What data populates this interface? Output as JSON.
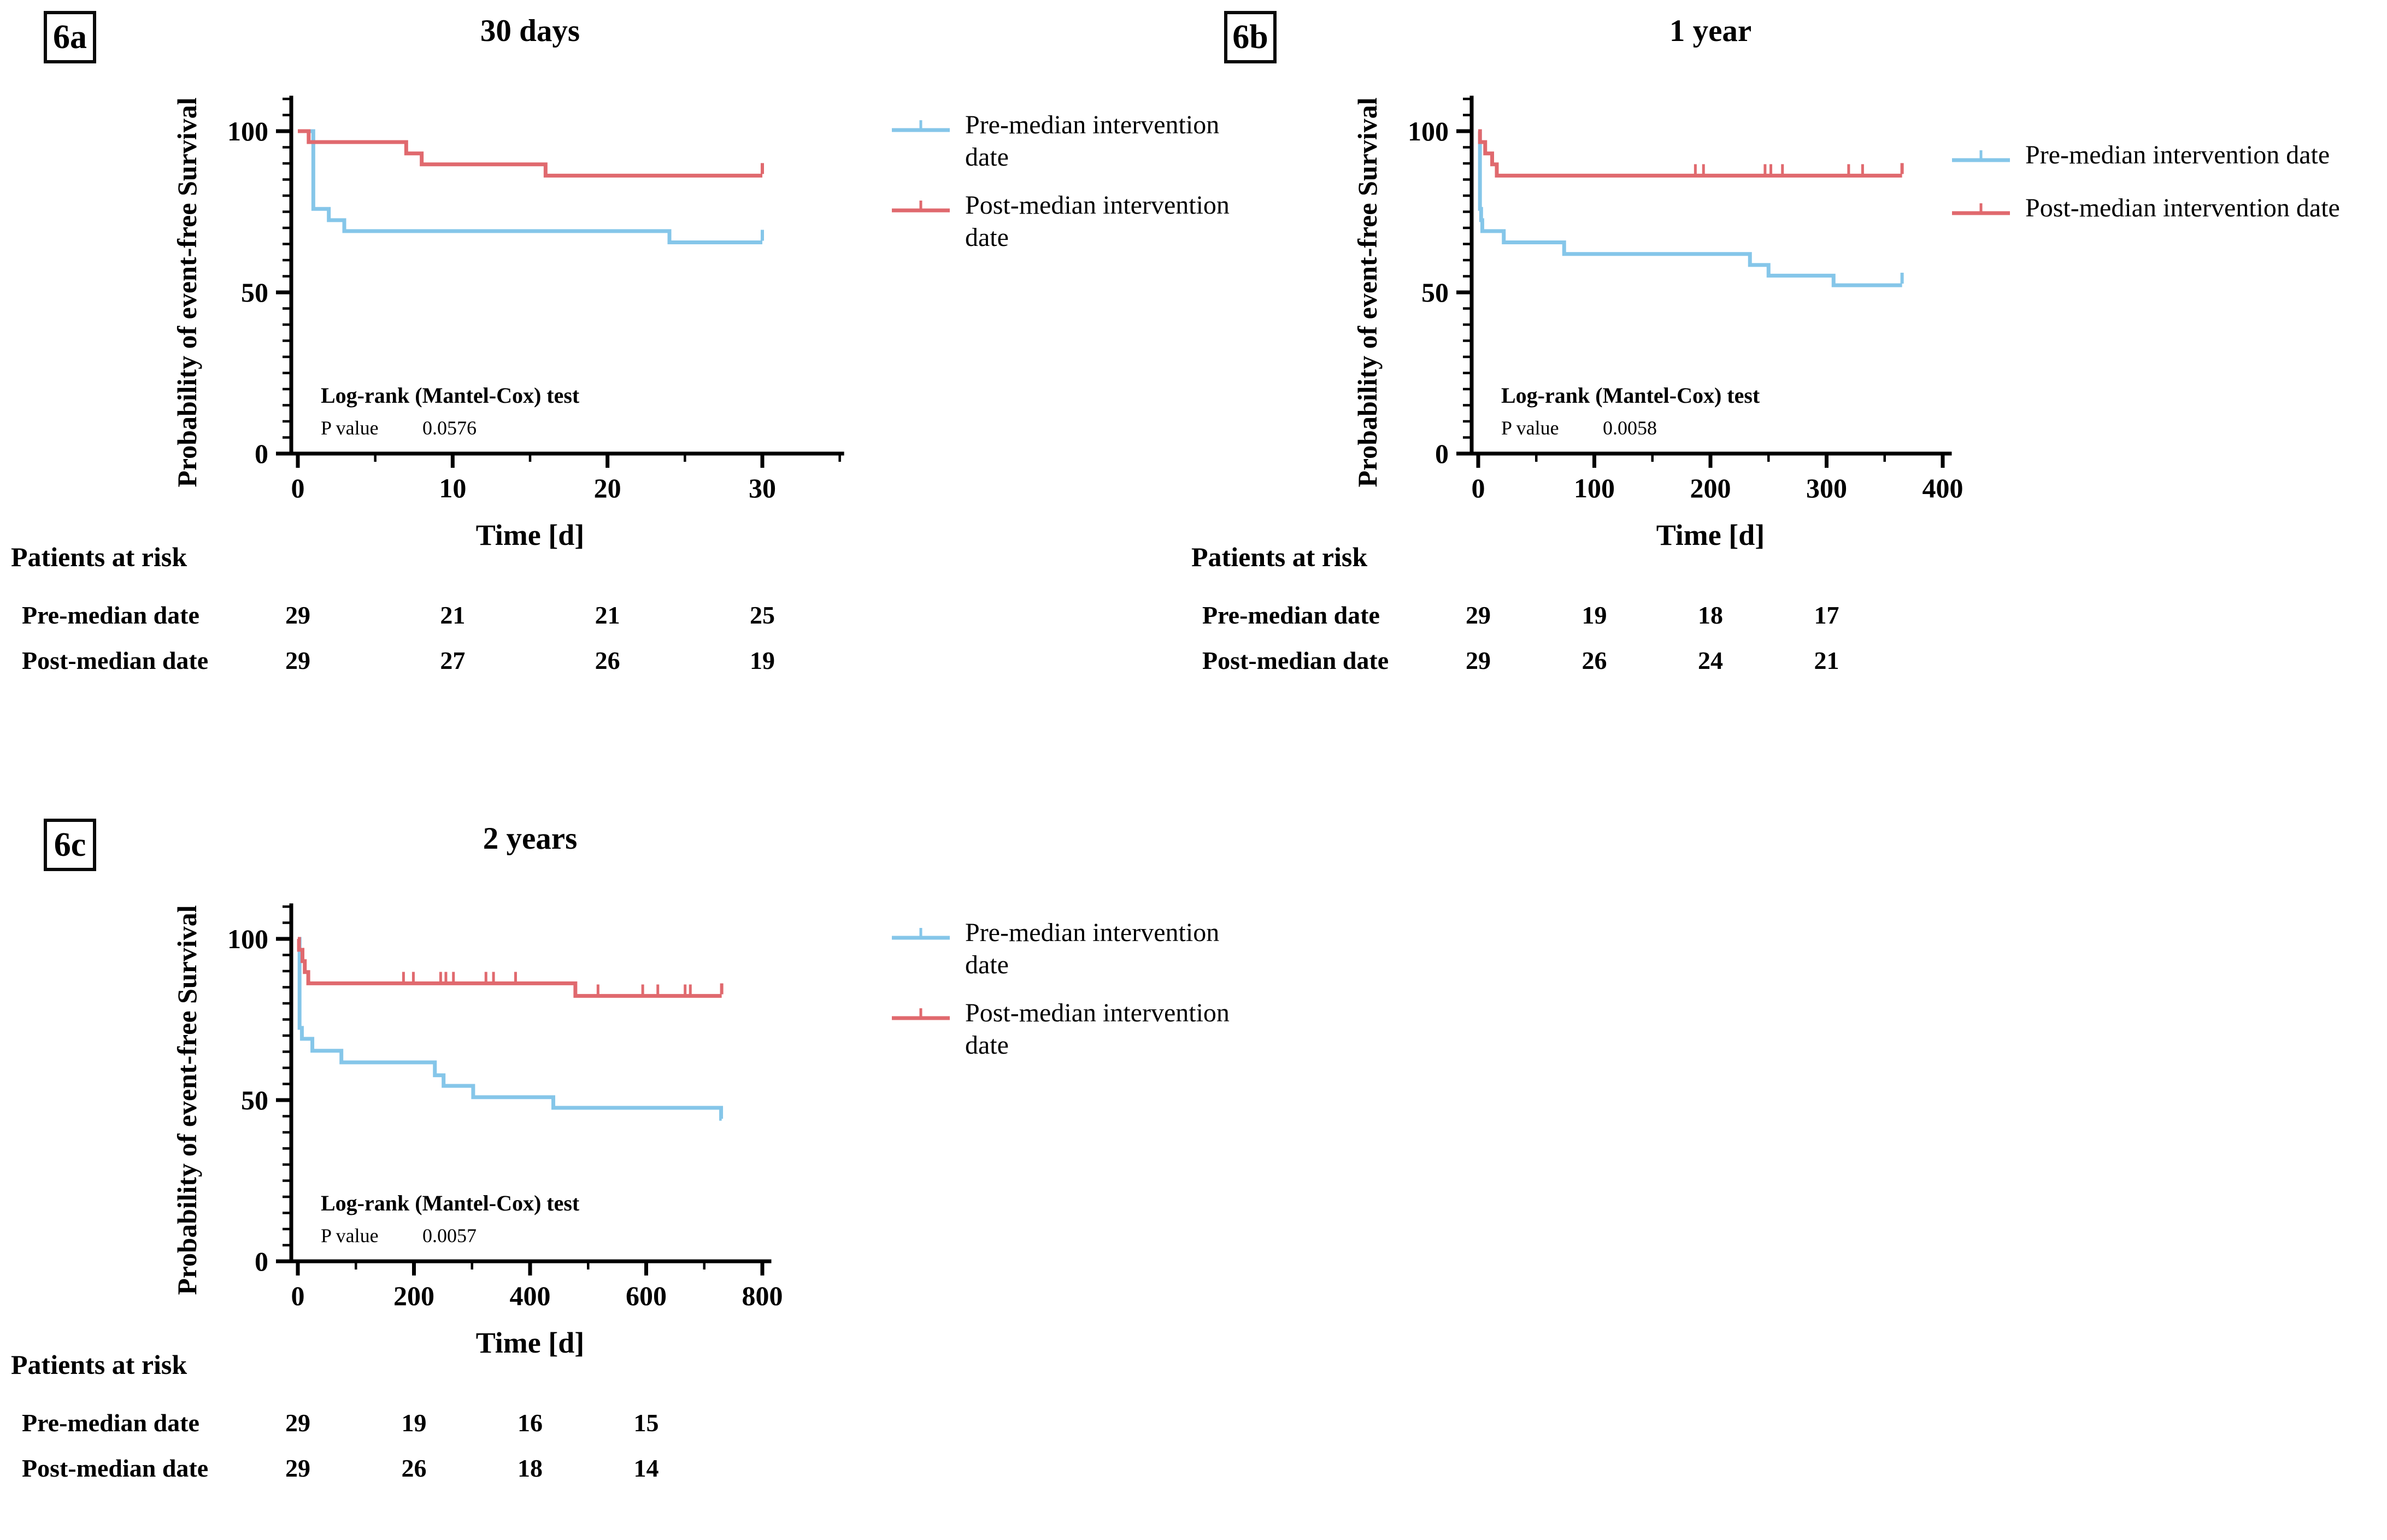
{
  "figure": {
    "background": "#ffffff",
    "axis_color": "#000000",
    "colors": {
      "pre_median": "#85C6E9",
      "post_median": "#E0696E"
    }
  },
  "chart_data": [
    {
      "id": "6a",
      "type": "line",
      "subtype": "kaplan-meier-step",
      "title": "30 days",
      "xlabel": "Time [d]",
      "ylabel": "Probability of event-free Survival",
      "x_majors": [
        0,
        10,
        20,
        30
      ],
      "x_minors": [
        5,
        15,
        25,
        35
      ],
      "x_axis_end": 35,
      "y_majors": [
        0,
        50,
        100
      ],
      "y_minor_step": 5,
      "ylim": [
        0,
        110
      ],
      "grid": false,
      "legend_position": "right",
      "legend_two_line": true,
      "stats": {
        "test": "Log-rank (Mantel-Cox) test",
        "p_label": "P value",
        "p_value": "0.0576"
      },
      "series": [
        {
          "name": "Pre-median intervention date",
          "color": "#85C6E9",
          "steps": [
            [
              0,
              100
            ],
            [
              1,
              75.9
            ],
            [
              2,
              72.4
            ],
            [
              3,
              69.0
            ],
            [
              24,
              65.5
            ]
          ],
          "end": 30,
          "end_censor": true,
          "censors": []
        },
        {
          "name": "Post-median intervention date",
          "color": "#E0696E",
          "steps": [
            [
              0,
              100
            ],
            [
              0.7,
              96.6
            ],
            [
              7,
              93.1
            ],
            [
              8,
              89.7
            ],
            [
              16,
              86.2
            ]
          ],
          "end": 30,
          "end_censor": true,
          "censors": []
        }
      ],
      "at_risk": {
        "title": "Patients at risk",
        "times": [
          0,
          10,
          20,
          30
        ],
        "rows": [
          {
            "label": "Pre-median date",
            "values": [
              29,
              21,
              21,
              25
            ]
          },
          {
            "label": "Post-median date",
            "values": [
              29,
              27,
              26,
              19
            ]
          }
        ]
      }
    },
    {
      "id": "6b",
      "type": "line",
      "subtype": "kaplan-meier-step",
      "title": "1 year",
      "xlabel": "Time [d]",
      "ylabel": "Probability of event-free Survival",
      "x_majors": [
        0,
        100,
        200,
        300,
        400
      ],
      "x_minors": [
        50,
        150,
        250,
        350
      ],
      "x_axis_end": 404,
      "y_majors": [
        0,
        50,
        100
      ],
      "y_minor_step": 5,
      "ylim": [
        0,
        110
      ],
      "grid": false,
      "legend_position": "right",
      "legend_two_line": false,
      "stats": {
        "test": "Log-rank (Mantel-Cox) test",
        "p_label": "P value",
        "p_value": "0.0058"
      },
      "series": [
        {
          "name": "Pre-median intervention date",
          "color": "#85C6E9",
          "steps": [
            [
              0,
              100
            ],
            [
              1.5,
              75.9
            ],
            [
              2.5,
              72.4
            ],
            [
              3.5,
              69.0
            ],
            [
              22,
              65.5
            ],
            [
              74,
              61.9
            ],
            [
              234,
              58.5
            ],
            [
              250,
              55.2
            ],
            [
              306,
              52.2
            ]
          ],
          "end": 365,
          "end_censor": true,
          "censors": []
        },
        {
          "name": "Post-median intervention date",
          "color": "#E0696E",
          "steps": [
            [
              0,
              100
            ],
            [
              1.5,
              96.6
            ],
            [
              6,
              93.1
            ],
            [
              12,
              89.7
            ],
            [
              16,
              86.2
            ]
          ],
          "end": 365,
          "end_censor": true,
          "censors": [
            187,
            194,
            247,
            252,
            262,
            319,
            331
          ]
        }
      ],
      "at_risk": {
        "title": "Patients at risk",
        "times": [
          0,
          100,
          200,
          300
        ],
        "rows": [
          {
            "label": "Pre-median date",
            "values": [
              29,
              19,
              18,
              17
            ]
          },
          {
            "label": "Post-median date",
            "values": [
              29,
              26,
              24,
              21
            ]
          }
        ]
      }
    },
    {
      "id": "6c",
      "type": "line",
      "subtype": "kaplan-meier-step",
      "title": "2 years",
      "xlabel": "Time [d]",
      "ylabel": "Probability of event-free Survival",
      "x_majors": [
        0,
        200,
        400,
        600,
        800
      ],
      "x_minors": [
        100,
        300,
        500,
        700
      ],
      "x_axis_end": 808,
      "y_majors": [
        0,
        50,
        100
      ],
      "y_minor_step": 5,
      "ylim": [
        0,
        110
      ],
      "grid": false,
      "legend_position": "right",
      "legend_two_line": true,
      "stats": {
        "test": "Log-rank (Mantel-Cox) test",
        "p_label": "P value",
        "p_value": "0.0057"
      },
      "series": [
        {
          "name": "Pre-median intervention date",
          "color": "#85C6E9",
          "steps": [
            [
              0,
              100
            ],
            [
              3,
              72.4
            ],
            [
              7,
              69.0
            ],
            [
              25,
              65.3
            ],
            [
              75,
              61.7
            ],
            [
              236,
              57.7
            ],
            [
              251,
              54.4
            ],
            [
              302,
              50.9
            ],
            [
              440,
              47.6
            ],
            [
              729,
              44.2
            ]
          ],
          "end": 730,
          "end_censor": false,
          "censors": []
        },
        {
          "name": "Post-median intervention date",
          "color": "#E0696E",
          "steps": [
            [
              0,
              100
            ],
            [
              2,
              96.6
            ],
            [
              8,
              93.1
            ],
            [
              12,
              89.7
            ],
            [
              18,
              86.2
            ],
            [
              478,
              82.3
            ]
          ],
          "end": 730,
          "end_censor": true,
          "censors": [
            182,
            199,
            246,
            255,
            268,
            324,
            337,
            375,
            517,
            594,
            620,
            667,
            676
          ]
        }
      ],
      "at_risk": {
        "title": "Patients at risk",
        "times": [
          0,
          200,
          400,
          600
        ],
        "rows": [
          {
            "label": "Pre-median date",
            "values": [
              29,
              19,
              16,
              15
            ]
          },
          {
            "label": "Post-median date",
            "values": [
              29,
              26,
              18,
              14
            ]
          }
        ]
      }
    }
  ]
}
